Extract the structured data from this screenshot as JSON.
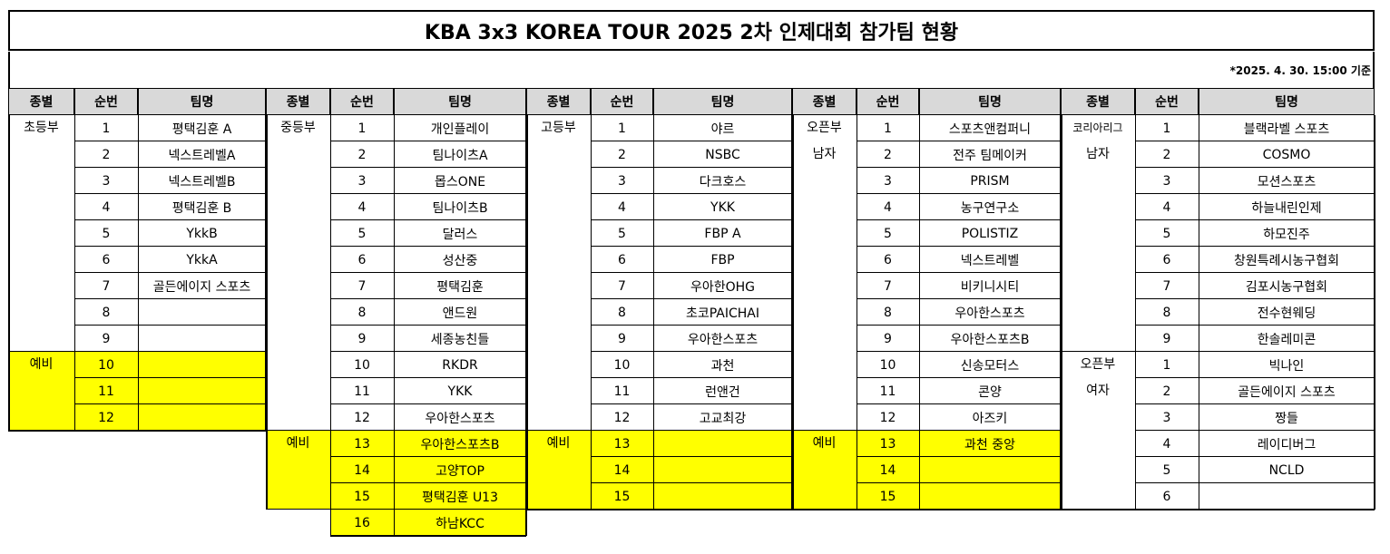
{
  "title": "KBA 3x3 KOREA TOUR 2025 2차 인제대회 참가팀 현황",
  "basis": "*2025. 4. 30. 15:00 기준",
  "headers": {
    "division": "종별",
    "order": "순번",
    "team": "팀명"
  },
  "sections": [
    {
      "divisions": [
        {
          "label": "초등부",
          "reserve": false,
          "rows": [
            {
              "order": "1",
              "team": "평택김훈 A"
            },
            {
              "order": "2",
              "team": "넥스트레벨A"
            },
            {
              "order": "3",
              "team": "넥스트레벨B"
            },
            {
              "order": "4",
              "team": "평택김훈 B"
            },
            {
              "order": "5",
              "team": "YkkB"
            },
            {
              "order": "6",
              "team": "YkkA"
            },
            {
              "order": "7",
              "team": "골든에이지 스포츠"
            },
            {
              "order": "8",
              "team": ""
            },
            {
              "order": "9",
              "team": ""
            }
          ]
        },
        {
          "label": "예비",
          "reserve": true,
          "rows": [
            {
              "order": "10",
              "team": ""
            },
            {
              "order": "11",
              "team": ""
            },
            {
              "order": "12",
              "team": ""
            }
          ]
        }
      ]
    },
    {
      "divisions": [
        {
          "label": "중등부",
          "reserve": false,
          "rows": [
            {
              "order": "1",
              "team": "개인플레이"
            },
            {
              "order": "2",
              "team": "팀나이츠A"
            },
            {
              "order": "3",
              "team": "몹스ONE"
            },
            {
              "order": "4",
              "team": "팀나이츠B"
            },
            {
              "order": "5",
              "team": "달러스"
            },
            {
              "order": "6",
              "team": "성산중"
            },
            {
              "order": "7",
              "team": "평택김훈"
            },
            {
              "order": "8",
              "team": "앤드원"
            },
            {
              "order": "9",
              "team": "세종농친들"
            },
            {
              "order": "10",
              "team": "RKDR"
            },
            {
              "order": "11",
              "team": "YKK"
            },
            {
              "order": "12",
              "team": "우아한스포츠"
            }
          ]
        },
        {
          "label": "예비",
          "reserve": true,
          "rows": [
            {
              "order": "13",
              "team": "우아한스포츠B"
            },
            {
              "order": "14",
              "team": "고양TOP"
            },
            {
              "order": "15",
              "team": "평택김훈 U13"
            },
            {
              "order": "16",
              "team": "하남KCC"
            }
          ]
        }
      ]
    },
    {
      "divisions": [
        {
          "label": "고등부",
          "reserve": false,
          "rows": [
            {
              "order": "1",
              "team": "야르"
            },
            {
              "order": "2",
              "team": "NSBC"
            },
            {
              "order": "3",
              "team": "다크호스"
            },
            {
              "order": "4",
              "team": "YKK"
            },
            {
              "order": "5",
              "team": "FBP A"
            },
            {
              "order": "6",
              "team": "FBP"
            },
            {
              "order": "7",
              "team": "우아한OHG"
            },
            {
              "order": "8",
              "team": "초코PAICHAI"
            },
            {
              "order": "9",
              "team": "우아한스포츠"
            },
            {
              "order": "10",
              "team": "과천"
            },
            {
              "order": "11",
              "team": "런앤건"
            },
            {
              "order": "12",
              "team": "고교최강"
            }
          ]
        },
        {
          "label": "예비",
          "reserve": true,
          "rows": [
            {
              "order": "13",
              "team": ""
            },
            {
              "order": "14",
              "team": ""
            },
            {
              "order": "15",
              "team": ""
            }
          ]
        }
      ]
    },
    {
      "divisions": [
        {
          "label": "오픈부",
          "label2": "남자",
          "reserve": false,
          "rows": [
            {
              "order": "1",
              "team": "스포츠앤컴퍼니"
            },
            {
              "order": "2",
              "team": "전주 팀메이커"
            },
            {
              "order": "3",
              "team": "PRISM"
            },
            {
              "order": "4",
              "team": "농구연구소"
            },
            {
              "order": "5",
              "team": "POLISTIZ"
            },
            {
              "order": "6",
              "team": "넥스트레벨"
            },
            {
              "order": "7",
              "team": "비키니시티"
            },
            {
              "order": "8",
              "team": "우아한스포츠"
            },
            {
              "order": "9",
              "team": "우아한스포츠B"
            },
            {
              "order": "10",
              "team": "신송모터스"
            },
            {
              "order": "11",
              "team": "콘양"
            },
            {
              "order": "12",
              "team": "아즈키"
            }
          ]
        },
        {
          "label": "예비",
          "reserve": true,
          "rows": [
            {
              "order": "13",
              "team": "과천 중앙"
            },
            {
              "order": "14",
              "team": ""
            },
            {
              "order": "15",
              "team": ""
            }
          ]
        }
      ]
    },
    {
      "divisions": [
        {
          "label": "코리아리그",
          "label2": "남자",
          "reserve": false,
          "rows": [
            {
              "order": "1",
              "team": "블랙라벨 스포츠"
            },
            {
              "order": "2",
              "team": "COSMO"
            },
            {
              "order": "3",
              "team": "모션스포츠"
            },
            {
              "order": "4",
              "team": "하늘내린인제"
            },
            {
              "order": "5",
              "team": "하모진주"
            },
            {
              "order": "6",
              "team": "창원특례시농구협회"
            },
            {
              "order": "7",
              "team": "김포시농구협회"
            },
            {
              "order": "8",
              "team": "전수현웨딩"
            },
            {
              "order": "9",
              "team": "한솔레미콘"
            }
          ]
        },
        {
          "label": "오픈부",
          "label2": "여자",
          "reserve": false,
          "rows": [
            {
              "order": "1",
              "team": "빅나인"
            },
            {
              "order": "2",
              "team": "골든에이지 스포츠"
            },
            {
              "order": "3",
              "team": "짱들"
            },
            {
              "order": "4",
              "team": "레이디버그"
            },
            {
              "order": "5",
              "team": "NCLD"
            },
            {
              "order": "6",
              "team": ""
            }
          ]
        }
      ]
    }
  ]
}
